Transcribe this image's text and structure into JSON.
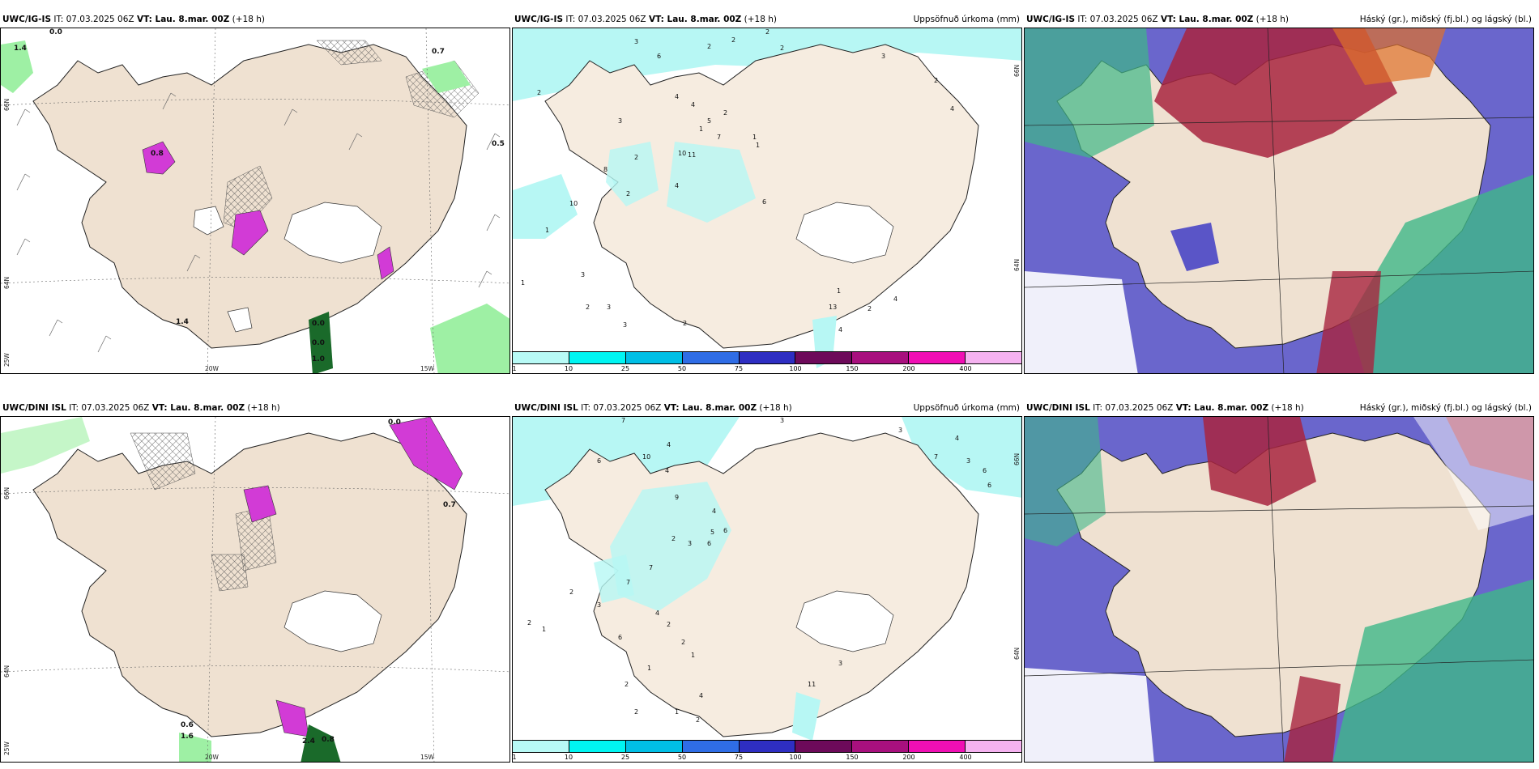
{
  "colors": {
    "land": "#efe1d1",
    "snow_free": "#f6ece0",
    "ocean": "#ffffff",
    "precip": "#b7f7f4",
    "green": "#9ef0a4",
    "magenta": "#d23bd6",
    "cloud_blue": "#5a55c7",
    "cloud_red": "#a8243f",
    "cloud_green": "#3fb888"
  },
  "colorbar": {
    "colors": [
      "#b8faf6",
      "#00f5f2",
      "#00bfe6",
      "#2f6de6",
      "#2e2ec2",
      "#6d0a5a",
      "#a8107e",
      "#f00fb4",
      "#f5b2f0"
    ],
    "ticks": [
      "1",
      "10",
      "25",
      "50",
      "75",
      "100",
      "150",
      "200",
      "400"
    ]
  },
  "rows": [
    {
      "wind": {
        "title_model": "UWC/IG-IS",
        "title_rest_it": "IT: 07.03.2025 06Z",
        "title_vt": "VT: Lau. 8.mar. 00Z",
        "title_lead": "(+18 h)",
        "lat_labels": [
          "66N",
          "64N",
          "25W"
        ],
        "lon_labels": [
          "20W",
          "15W"
        ],
        "values": [
          "1.4",
          "0.0",
          "0.7",
          "0.5",
          "0.8",
          "1.4",
          "0.0",
          "0.0",
          "1.0"
        ]
      },
      "precip": {
        "title_model": "UWC/IG-IS",
        "title_rest_it": "IT: 07.03.2025 06Z",
        "title_vt": "VT: Lau. 8.mar. 00Z",
        "title_lead": "(+18 h)",
        "right_title": "Uppsöfnuð úrkoma (mm)",
        "lat_labels": [
          "66N",
          "64N"
        ],
        "values": [
          "3",
          "2",
          "2",
          "2",
          "4",
          "6",
          "2",
          "1",
          "3",
          "2",
          "2",
          "4",
          "5",
          "7",
          "1",
          "4",
          "10",
          "11",
          "2",
          "6",
          "8",
          "2",
          "3",
          "2",
          "1",
          "13",
          "2",
          "4",
          "10",
          "4",
          "1",
          "1",
          "3",
          "2",
          "2",
          "3",
          "3",
          "4",
          "1"
        ]
      },
      "cloud": {
        "title_model": "UWC/IG-IS",
        "title_rest_it": "IT: 07.03.2025 06Z",
        "title_vt": "VT: Lau. 8.mar. 00Z",
        "title_lead": "(+18 h)",
        "right_title": "Háský (gr.), miðský (fj.bl.) og lágský (bl.)"
      }
    },
    {
      "wind": {
        "title_model": "UWC/DINI ISL",
        "title_rest_it": "IT: 07.03.2025 06Z",
        "title_vt": "VT: Lau. 8.mar. 00Z",
        "title_lead": "(+18 h)",
        "lat_labels": [
          "66N",
          "64N",
          "25W"
        ],
        "lon_labels": [
          "20W",
          "15W"
        ],
        "values": [
          "0.6",
          "1.6",
          "2.4",
          "0.8",
          "0.0",
          "0.7"
        ]
      },
      "precip": {
        "title_model": "UWC/DINI ISL",
        "title_rest_it": "IT: 07.03.2025 06Z",
        "title_vt": "VT: Lau. 8.mar. 00Z",
        "title_lead": "(+18 h)",
        "right_title": "Uppsöfnuð úrkoma (mm)",
        "lat_labels": [
          "66N",
          "64N"
        ],
        "values": [
          "7",
          "3",
          "4",
          "6",
          "10",
          "4",
          "9",
          "4",
          "7",
          "6",
          "3",
          "5",
          "6",
          "2",
          "7",
          "2",
          "4",
          "2",
          "1",
          "3",
          "1",
          "2",
          "6",
          "2",
          "1",
          "11",
          "2",
          "4",
          "3",
          "3",
          "7",
          "4",
          "6",
          "6",
          "3",
          "2",
          "1",
          "2"
        ]
      },
      "cloud": {
        "title_model": "UWC/DINI ISL",
        "title_rest_it": "IT: 07.03.2025 06Z",
        "title_vt": "VT: Lau. 8.mar. 00Z",
        "title_lead": "(+18 h)",
        "right_title": "Háský (gr.), miðský (fj.bl.) og lágský (bl.)"
      }
    }
  ]
}
